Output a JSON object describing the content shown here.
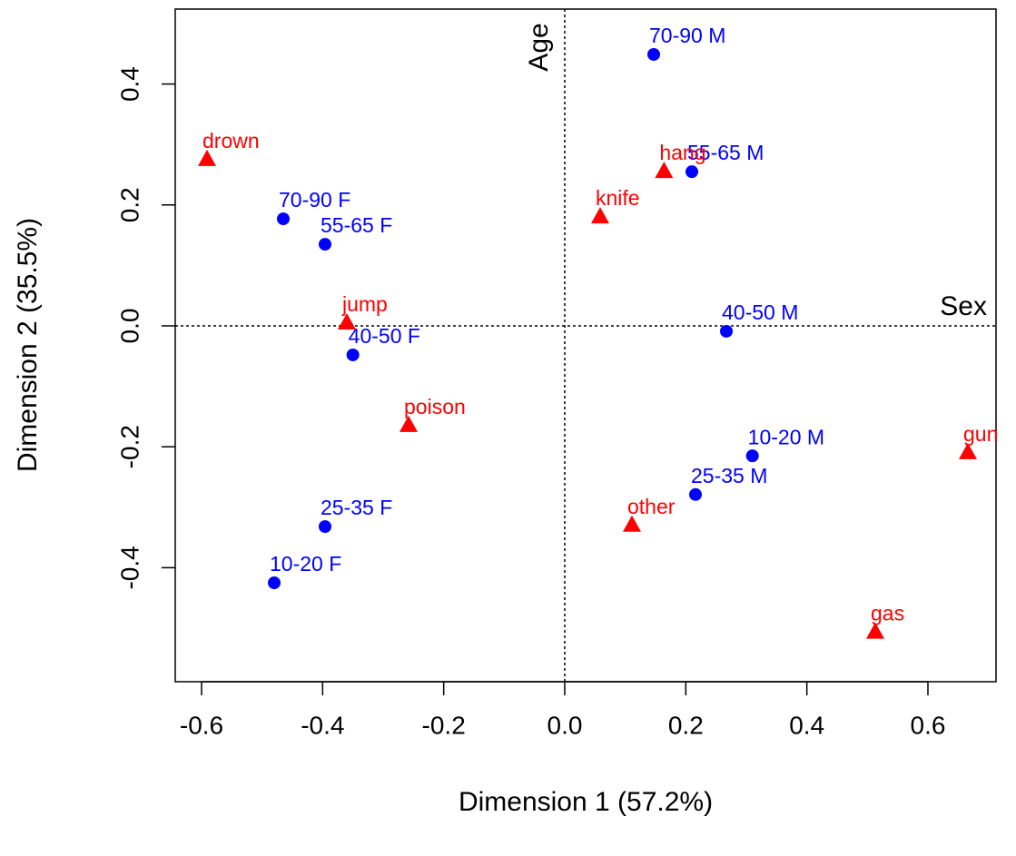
{
  "chart_data": {
    "type": "scatter",
    "xlabel": "Dimension 1 (57.2%)",
    "ylabel": "Dimension 2 (35.5%)",
    "xlim": [
      -0.6435,
      0.7125
    ],
    "ylim": [
      -0.5886,
      0.524
    ],
    "xticks": [
      -0.6,
      -0.4,
      -0.2,
      {
        "value": 0,
        "label": "0.0"
      },
      0.2,
      0.4,
      0.6
    ],
    "yticks": [
      -0.4,
      -0.2,
      {
        "value": 0,
        "label": "0.0"
      },
      0.2,
      0.4
    ],
    "vline": {
      "value": 0,
      "label": "Age"
    },
    "hline": {
      "value": 0,
      "label": "Sex"
    },
    "series": [
      {
        "color": "#0000ff",
        "marker": "circle",
        "labels": [
          "70-90 M",
          "55-65 M",
          "40-50 M",
          "10-20 M",
          "25-35 M",
          "70-90 F",
          "55-65 F",
          "40-50 F",
          "25-35 F",
          "10-20 F"
        ],
        "x": [
          0.147,
          0.21,
          0.267,
          0.31,
          0.216,
          -0.465,
          -0.396,
          -0.35,
          -0.396,
          -0.48
        ],
        "values": [
          0.449,
          0.255,
          -0.009,
          -0.215,
          -0.279,
          0.177,
          0.135,
          -0.048,
          -0.332,
          -0.425
        ]
      },
      {
        "color": "#ff0000",
        "marker": "triangle",
        "labels": [
          "drown",
          "hang",
          "knife",
          "jump",
          "poison",
          "gun",
          "other",
          "gas"
        ],
        "x": [
          -0.591,
          0.164,
          0.0585,
          -0.36,
          -0.258,
          0.666,
          0.111,
          0.513
        ],
        "values": [
          0.275,
          0.255,
          0.18,
          0.0045,
          -0.165,
          -0.21,
          -0.33,
          -0.507
        ]
      }
    ]
  }
}
